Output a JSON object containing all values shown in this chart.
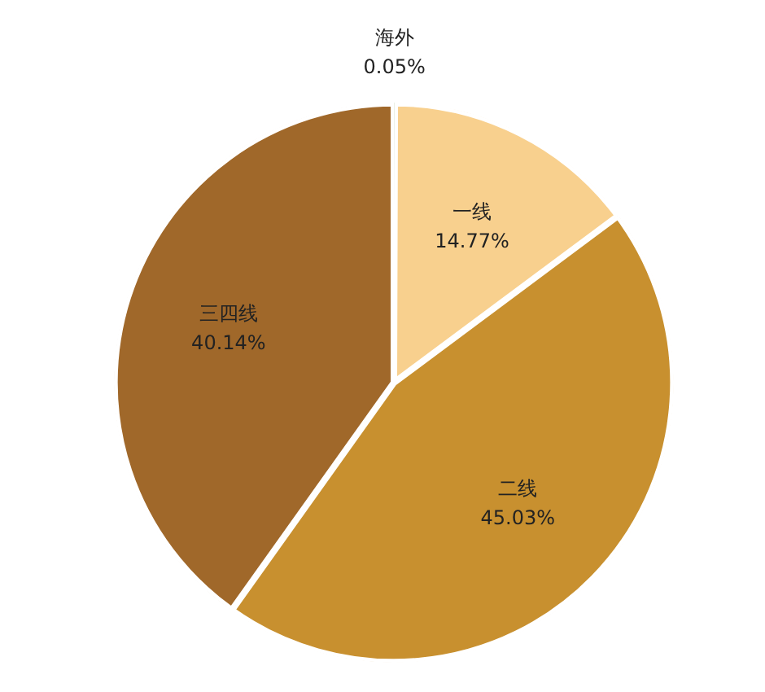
{
  "chart_data": {
    "type": "pie",
    "categories": [
      "海外",
      "一线",
      "二线",
      "三四线"
    ],
    "values": [
      0.05,
      14.77,
      45.03,
      40.14
    ],
    "colors": [
      "#6b8e3a",
      "#f8d08e",
      "#c8902f",
      "#a0682a"
    ],
    "value_labels": [
      "0.05%",
      "14.77%",
      "45.03%",
      "40.14%"
    ],
    "legend": false
  }
}
